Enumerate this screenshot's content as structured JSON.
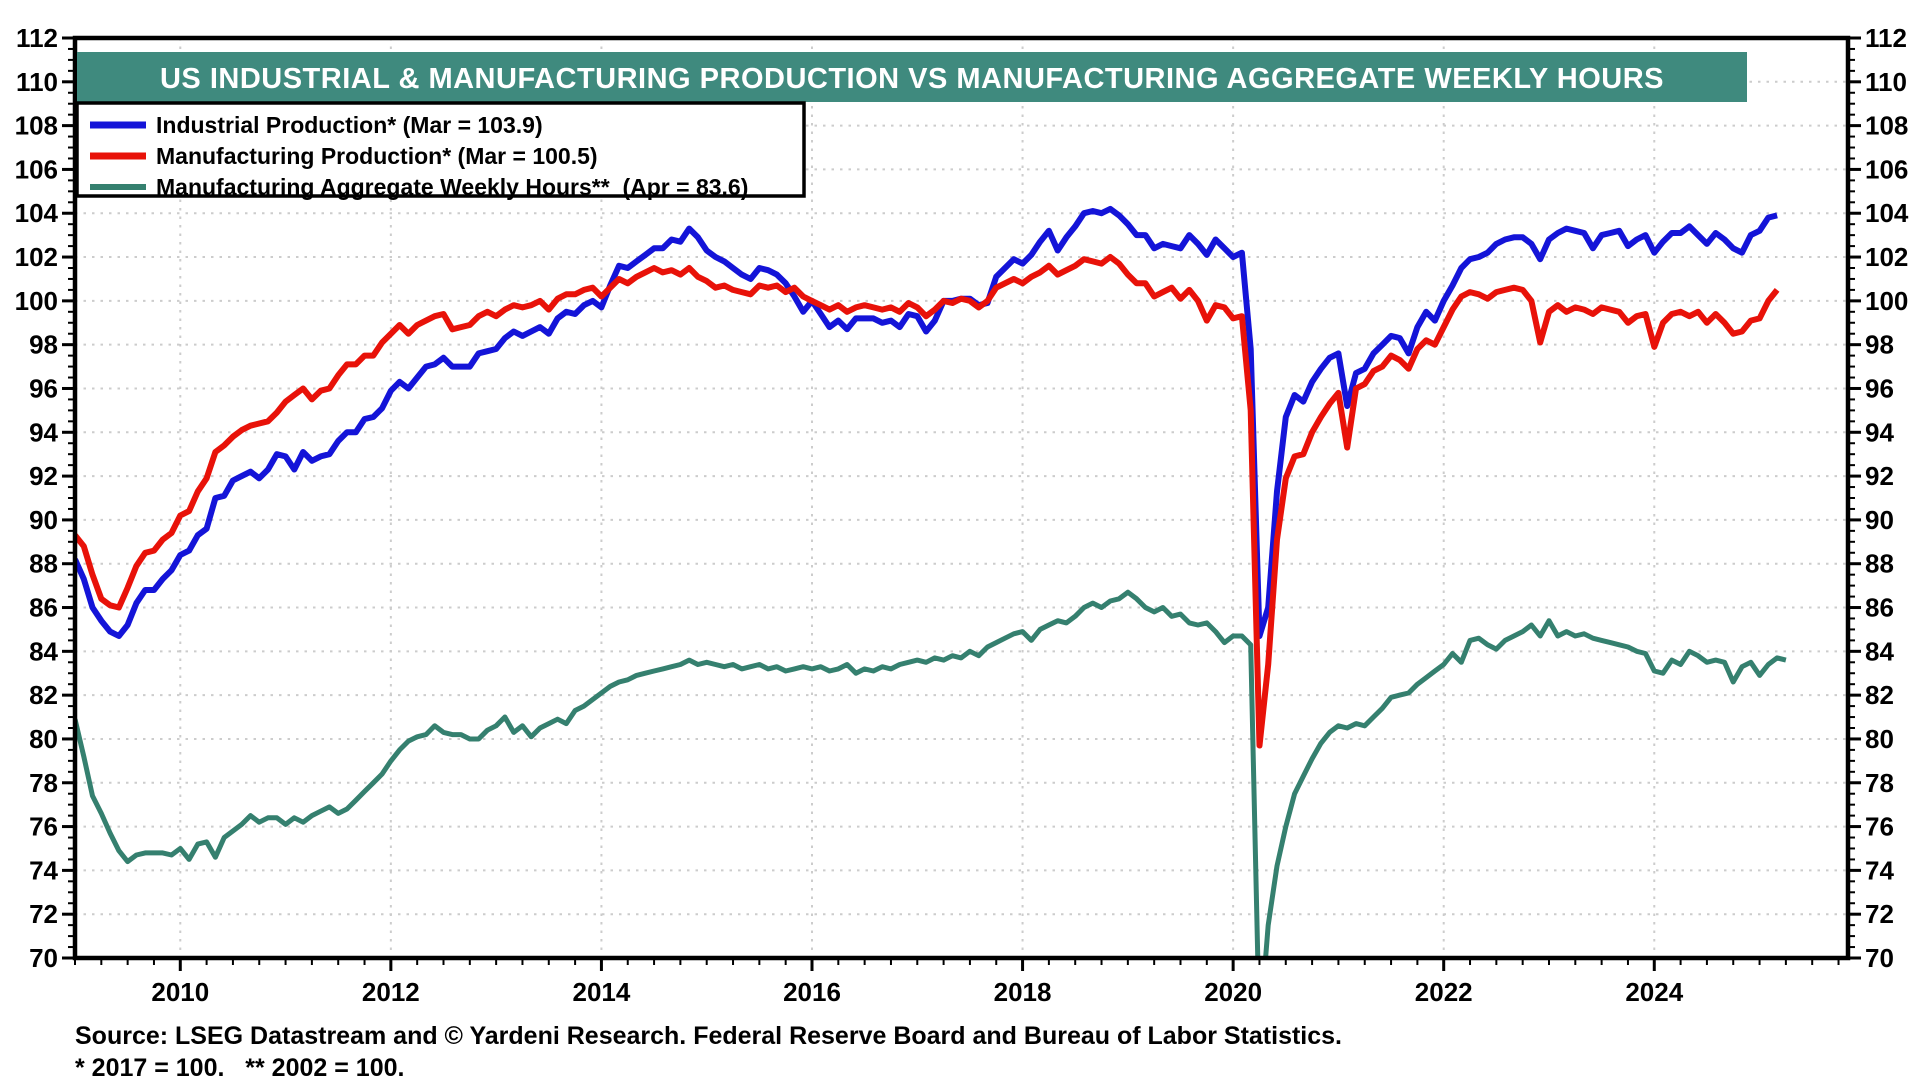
{
  "page": {
    "background": "#ffffff"
  },
  "title_banner": {
    "bg_color": "#3F8A7E",
    "text_color": "#ffffff"
  },
  "footer": {
    "source": "Source: LSEG Datastream and © Yardeni Research. Federal Reserve Board and Bureau of Labor Statistics.",
    "footnote": "* 2017 = 100.   ** 2002 = 100."
  },
  "chart_data": {
    "type": "line",
    "title": "US INDUSTRIAL & MANUFACTURING PRODUCTION VS MANUFACTURING AGGREGATE WEEKLY HOURS",
    "x_axis": {
      "range": [
        2009.0,
        2025.84
      ],
      "tick_labels": [
        "2010",
        "2012",
        "2014",
        "2016",
        "2018",
        "2020",
        "2022",
        "2024"
      ],
      "tick_values": [
        2010,
        2012,
        2014,
        2016,
        2018,
        2020,
        2022,
        2024
      ],
      "minor_tick_step_years": 0.25
    },
    "y_axis": {
      "range": [
        70,
        112
      ],
      "major_step": 2,
      "minor_step": 0.5,
      "labels_both_sides": true
    },
    "grid": {
      "show": true,
      "style": "dotted",
      "color": "#cccccc"
    },
    "legend_position": "top-left",
    "frequency": "monthly",
    "start_year": 2009,
    "start_month": 1,
    "series": [
      {
        "name": "Industrial Production* (Mar = 103.9)",
        "color": "#1414D8",
        "width": 6,
        "values": [
          88.2,
          87.3,
          86.0,
          85.4,
          84.9,
          84.7,
          85.2,
          86.2,
          86.8,
          86.8,
          87.3,
          87.7,
          88.4,
          88.6,
          89.3,
          89.6,
          91.0,
          91.1,
          91.8,
          92.0,
          92.2,
          91.9,
          92.3,
          93.0,
          92.9,
          92.3,
          93.1,
          92.7,
          92.9,
          93.0,
          93.6,
          94.0,
          94.0,
          94.6,
          94.7,
          95.1,
          95.9,
          96.3,
          96.0,
          96.5,
          97.0,
          97.1,
          97.4,
          97.0,
          97.0,
          97.0,
          97.6,
          97.7,
          97.8,
          98.3,
          98.6,
          98.4,
          98.6,
          98.8,
          98.5,
          99.2,
          99.5,
          99.4,
          99.8,
          100.0,
          99.7,
          100.7,
          101.6,
          101.5,
          101.8,
          102.1,
          102.4,
          102.4,
          102.8,
          102.7,
          103.3,
          102.9,
          102.3,
          102.0,
          101.8,
          101.5,
          101.2,
          101.0,
          101.5,
          101.4,
          101.2,
          100.8,
          100.2,
          99.5,
          100.0,
          99.4,
          98.8,
          99.1,
          98.7,
          99.2,
          99.2,
          99.2,
          99.0,
          99.1,
          98.8,
          99.4,
          99.3,
          98.6,
          99.1,
          100.0,
          100.0,
          100.1,
          100.1,
          99.8,
          99.9,
          101.1,
          101.5,
          101.9,
          101.7,
          102.1,
          102.7,
          103.2,
          102.3,
          102.9,
          103.4,
          104.0,
          104.1,
          104.0,
          104.2,
          103.9,
          103.5,
          103.0,
          103.0,
          102.4,
          102.6,
          102.5,
          102.4,
          103.0,
          102.6,
          102.1,
          102.8,
          102.4,
          102.0,
          102.2,
          97.8,
          84.7,
          86.0,
          91.3,
          94.7,
          95.7,
          95.4,
          96.3,
          96.9,
          97.4,
          97.6,
          95.2,
          96.7,
          96.9,
          97.6,
          98.0,
          98.4,
          98.3,
          97.6,
          98.8,
          99.5,
          99.1,
          100.0,
          100.7,
          101.5,
          101.9,
          102.0,
          102.2,
          102.6,
          102.8,
          102.9,
          102.9,
          102.6,
          101.9,
          102.8,
          103.1,
          103.3,
          103.2,
          103.1,
          102.4,
          103.0,
          103.1,
          103.2,
          102.5,
          102.8,
          103.0,
          102.2,
          102.7,
          103.1,
          103.1,
          103.4,
          103.0,
          102.6,
          103.1,
          102.8,
          102.4,
          102.2,
          103.0,
          103.2,
          103.8,
          103.9
        ]
      },
      {
        "name": "Manufacturing Production* (Mar = 100.5)",
        "color": "#E81209",
        "width": 6,
        "values": [
          89.3,
          88.8,
          87.5,
          86.4,
          86.1,
          86.0,
          86.9,
          87.9,
          88.5,
          88.6,
          89.1,
          89.4,
          90.2,
          90.4,
          91.3,
          91.9,
          93.1,
          93.4,
          93.8,
          94.1,
          94.3,
          94.4,
          94.5,
          94.9,
          95.4,
          95.7,
          96.0,
          95.5,
          95.9,
          96.0,
          96.6,
          97.1,
          97.1,
          97.5,
          97.5,
          98.1,
          98.5,
          98.9,
          98.5,
          98.9,
          99.1,
          99.3,
          99.4,
          98.7,
          98.8,
          98.9,
          99.3,
          99.5,
          99.3,
          99.6,
          99.8,
          99.7,
          99.8,
          100.0,
          99.6,
          100.1,
          100.3,
          100.3,
          100.5,
          100.6,
          100.2,
          100.6,
          101.0,
          100.8,
          101.1,
          101.3,
          101.5,
          101.3,
          101.4,
          101.2,
          101.5,
          101.1,
          100.9,
          100.6,
          100.7,
          100.5,
          100.4,
          100.3,
          100.7,
          100.6,
          100.7,
          100.4,
          100.6,
          100.2,
          100.0,
          99.8,
          99.6,
          99.8,
          99.5,
          99.7,
          99.8,
          99.7,
          99.6,
          99.7,
          99.5,
          99.9,
          99.7,
          99.3,
          99.6,
          100.0,
          99.9,
          100.1,
          100.0,
          99.7,
          100.0,
          100.6,
          100.8,
          101.0,
          100.8,
          101.1,
          101.3,
          101.6,
          101.2,
          101.4,
          101.6,
          101.9,
          101.8,
          101.7,
          102.0,
          101.7,
          101.2,
          100.8,
          100.8,
          100.2,
          100.4,
          100.6,
          100.1,
          100.5,
          100.0,
          99.1,
          99.8,
          99.7,
          99.2,
          99.3,
          95.0,
          79.7,
          83.4,
          89.1,
          91.9,
          92.9,
          93.0,
          94.0,
          94.7,
          95.3,
          95.8,
          93.3,
          96.0,
          96.2,
          96.8,
          97.0,
          97.5,
          97.3,
          96.9,
          97.8,
          98.2,
          98.0,
          98.8,
          99.6,
          100.2,
          100.4,
          100.3,
          100.1,
          100.4,
          100.5,
          100.6,
          100.5,
          100.0,
          98.1,
          99.5,
          99.8,
          99.5,
          99.7,
          99.6,
          99.4,
          99.7,
          99.6,
          99.5,
          99.0,
          99.3,
          99.4,
          97.9,
          99.0,
          99.4,
          99.5,
          99.3,
          99.5,
          99.0,
          99.4,
          99.0,
          98.5,
          98.6,
          99.1,
          99.2,
          100.0,
          100.5
        ]
      },
      {
        "name": "Manufacturing Aggregate Weekly Hours**  (Apr = 83.6)",
        "color": "#35806F",
        "width": 5,
        "values": [
          80.9,
          79.2,
          77.4,
          76.6,
          75.7,
          74.9,
          74.4,
          74.7,
          74.8,
          74.8,
          74.8,
          74.7,
          75.0,
          74.5,
          75.2,
          75.3,
          74.6,
          75.5,
          75.8,
          76.1,
          76.5,
          76.2,
          76.4,
          76.4,
          76.1,
          76.4,
          76.2,
          76.5,
          76.7,
          76.9,
          76.6,
          76.8,
          77.2,
          77.6,
          78.0,
          78.4,
          79.0,
          79.5,
          79.9,
          80.1,
          80.2,
          80.6,
          80.3,
          80.2,
          80.2,
          80.0,
          80.0,
          80.4,
          80.6,
          81.0,
          80.3,
          80.6,
          80.1,
          80.5,
          80.7,
          80.9,
          80.7,
          81.3,
          81.5,
          81.8,
          82.1,
          82.4,
          82.6,
          82.7,
          82.9,
          83.0,
          83.1,
          83.2,
          83.3,
          83.4,
          83.6,
          83.4,
          83.5,
          83.4,
          83.3,
          83.4,
          83.2,
          83.3,
          83.4,
          83.2,
          83.3,
          83.1,
          83.2,
          83.3,
          83.2,
          83.3,
          83.1,
          83.2,
          83.4,
          83.0,
          83.2,
          83.1,
          83.3,
          83.2,
          83.4,
          83.5,
          83.6,
          83.5,
          83.7,
          83.6,
          83.8,
          83.7,
          84.0,
          83.8,
          84.2,
          84.4,
          84.6,
          84.8,
          84.9,
          84.5,
          85.0,
          85.2,
          85.4,
          85.3,
          85.6,
          86.0,
          86.2,
          86.0,
          86.3,
          86.4,
          86.7,
          86.4,
          86.0,
          85.8,
          86.0,
          85.6,
          85.7,
          85.3,
          85.2,
          85.3,
          84.9,
          84.4,
          84.7,
          84.7,
          84.3,
          66.5,
          71.5,
          74.2,
          76.0,
          77.5,
          78.3,
          79.1,
          79.8,
          80.3,
          80.6,
          80.5,
          80.7,
          80.6,
          81.0,
          81.4,
          81.9,
          82.0,
          82.1,
          82.5,
          82.8,
          83.1,
          83.4,
          83.9,
          83.5,
          84.5,
          84.6,
          84.3,
          84.1,
          84.5,
          84.7,
          84.9,
          85.2,
          84.7,
          85.4,
          84.7,
          84.9,
          84.7,
          84.8,
          84.6,
          84.5,
          84.4,
          84.3,
          84.2,
          84.0,
          83.9,
          83.1,
          83.0,
          83.6,
          83.4,
          84.0,
          83.8,
          83.5,
          83.6,
          83.5,
          82.6,
          83.3,
          83.5,
          82.9,
          83.4,
          83.7,
          83.6
        ]
      }
    ]
  }
}
